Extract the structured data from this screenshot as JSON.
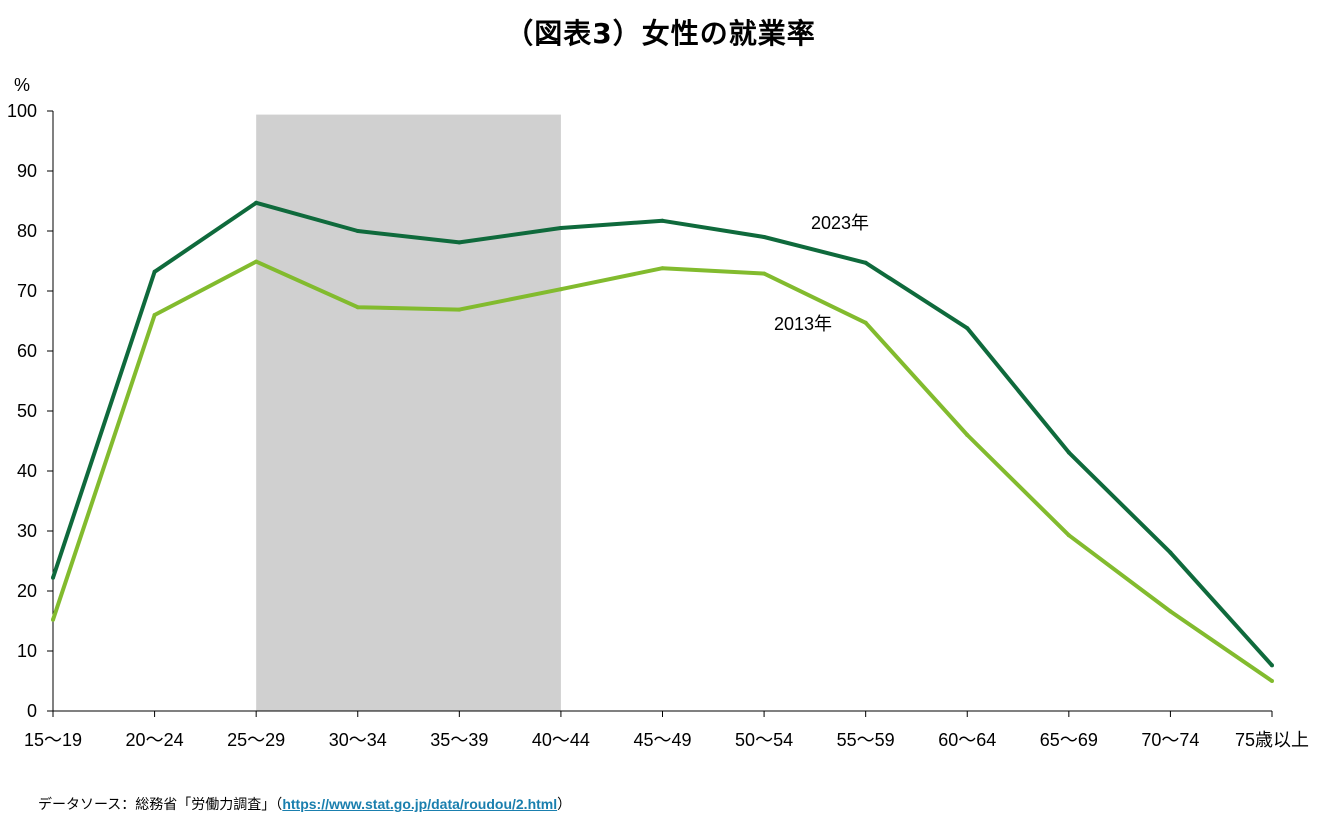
{
  "chart_data": {
    "type": "line",
    "title": "（図表3）女性の就業率",
    "ylabel": "%",
    "xlabel": "",
    "ylim": [
      0,
      100
    ],
    "yticks": [
      0,
      10,
      20,
      30,
      40,
      50,
      60,
      70,
      80,
      90,
      100
    ],
    "categories": [
      "15～19",
      "20～24",
      "25～29",
      "30～34",
      "35～39",
      "40～44",
      "45～49",
      "50～54",
      "55～59",
      "60～64",
      "65～69",
      "70～74",
      "75歳以上"
    ],
    "highlight_range": [
      "25～29",
      "40～44"
    ],
    "grid": false,
    "legend": "inline-labels",
    "series": [
      {
        "name": "2023年",
        "color": "#0f6a3c",
        "values": [
          22.2,
          73.2,
          84.7,
          80.0,
          78.1,
          80.5,
          81.7,
          79.0,
          74.7,
          63.8,
          43.1,
          26.4,
          7.6
        ]
      },
      {
        "name": "2013年",
        "color": "#82bb2e",
        "values": [
          15.2,
          66.0,
          74.9,
          67.3,
          66.9,
          70.3,
          73.8,
          72.9,
          64.7,
          46.0,
          29.3,
          16.6,
          5.0
        ]
      }
    ]
  },
  "source": {
    "prefix": "データソース：総務省「労働力調査」（",
    "link": "https://www.stat.go.jp/data/roudou/2.html",
    "suffix": "）"
  },
  "colors": {
    "highlight": "#d0d0d0",
    "axis": "#000000"
  }
}
